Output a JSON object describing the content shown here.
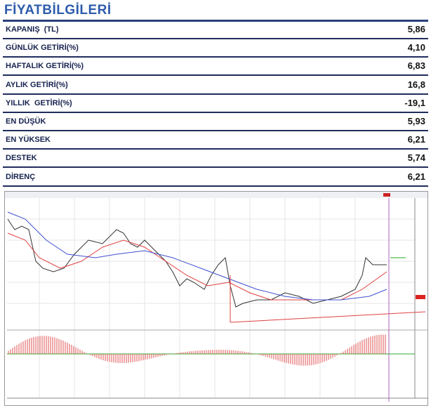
{
  "header": {
    "title": "FİYATBİLGİLERİ"
  },
  "table": {
    "rows": [
      [
        "KAPANIŞ  (TL)",
        "5,86"
      ],
      [
        "GÜNLÜK GETİRİ(%)",
        "4,10"
      ],
      [
        "HAFTALIK GETİRİ(%)",
        "6,83"
      ],
      [
        "AYLIK GETİRİ(%)",
        "16,8"
      ],
      [
        "YILLIK  GETİRİ(%)",
        "-19,1"
      ],
      [
        "EN DÜŞÜK",
        "5,93"
      ],
      [
        "EN YÜKSEK",
        "6,21"
      ],
      [
        "DESTEK",
        "5,74"
      ],
      [
        "DİRENÇ",
        "6,21"
      ]
    ]
  }
}
